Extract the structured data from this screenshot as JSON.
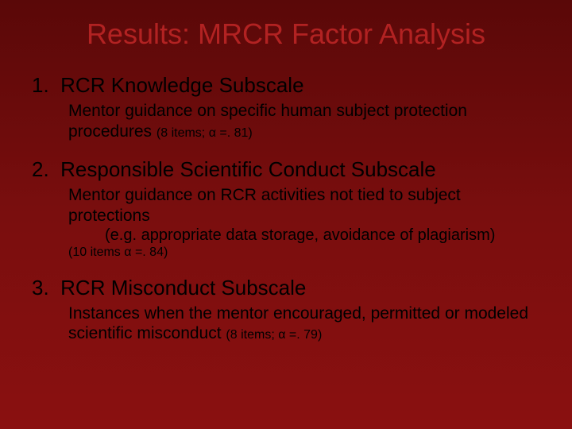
{
  "title": "Results: MRCR Factor Analysis",
  "sections": [
    {
      "number": "1.",
      "heading": "RCR Knowledge Subscale",
      "body": "Mentor guidance on specific human subject protection procedures",
      "note": "(8 items; α =. 81)"
    },
    {
      "number": "2.",
      "heading": "Responsible Scientific Conduct Subscale",
      "body": "Mentor guidance on RCR activities not tied to subject protections",
      "sub": "(e.g. appropriate data storage, avoidance of plagiarism)",
      "note": "(10 items α =. 84)"
    },
    {
      "number": "3.",
      "heading": "RCR Misconduct Subscale",
      "body": "Instances when the mentor encouraged, permitted or modeled scientific misconduct",
      "note": "(8 items; α =. 79)"
    }
  ],
  "colors": {
    "title": "#b22222",
    "text": "#000000",
    "bg_top": "#5a0808",
    "bg_bottom": "#8a1010"
  },
  "fonts": {
    "title_size": 36,
    "heading_size": 26,
    "body_size": 21,
    "note_size": 16
  }
}
